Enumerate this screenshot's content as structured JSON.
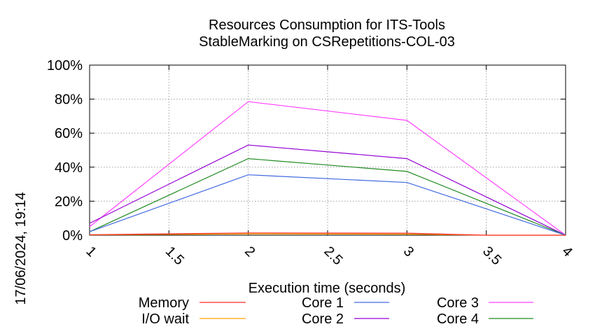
{
  "side_label": "17/06/2024, 19:14",
  "chart_data": {
    "type": "line",
    "title_line1": "Resources Consumption for ITS-Tools",
    "title_line2": "StableMarking on CSRepetitions-COL-03",
    "xlabel": "Execution time (seconds)",
    "ylabel": "",
    "xlim": [
      1,
      4
    ],
    "ylim": [
      0,
      100
    ],
    "x_ticks": [
      "1",
      "1.5",
      "2",
      "2.5",
      "3",
      "3.5",
      "4"
    ],
    "x_tick_values": [
      1,
      1.5,
      2,
      2.5,
      3,
      3.5,
      4
    ],
    "y_ticks": [
      "0%",
      "20%",
      "40%",
      "60%",
      "80%",
      "100%"
    ],
    "y_tick_values": [
      0,
      20,
      40,
      60,
      80,
      100
    ],
    "grid": true,
    "legend_placement": "bottom",
    "series": [
      {
        "name": "Memory",
        "color": "#ff2a2a",
        "x": [
          1,
          2,
          3,
          3.5,
          4
        ],
        "y": [
          0.3,
          1.3,
          1.2,
          0,
          0
        ]
      },
      {
        "name": "I/O wait",
        "color": "#ffa500",
        "x": [
          1,
          2,
          3,
          3.5,
          4
        ],
        "y": [
          0.2,
          0.8,
          0.6,
          0,
          0
        ]
      },
      {
        "name": "Core 1",
        "color": "#4169e1",
        "x": [
          1,
          2,
          3,
          4
        ],
        "y": [
          2,
          35.5,
          31,
          0
        ]
      },
      {
        "name": "Core 2",
        "color": "#9400d3",
        "x": [
          1,
          2,
          3,
          4
        ],
        "y": [
          7,
          53,
          45,
          0
        ]
      },
      {
        "name": "Core 3",
        "color": "#ff40ff",
        "x": [
          1,
          2,
          3,
          4
        ],
        "y": [
          5,
          78.5,
          67.5,
          0
        ]
      },
      {
        "name": "Core 4",
        "color": "#228b22",
        "x": [
          1,
          2,
          3,
          4
        ],
        "y": [
          2,
          45,
          37.5,
          0
        ]
      }
    ]
  }
}
